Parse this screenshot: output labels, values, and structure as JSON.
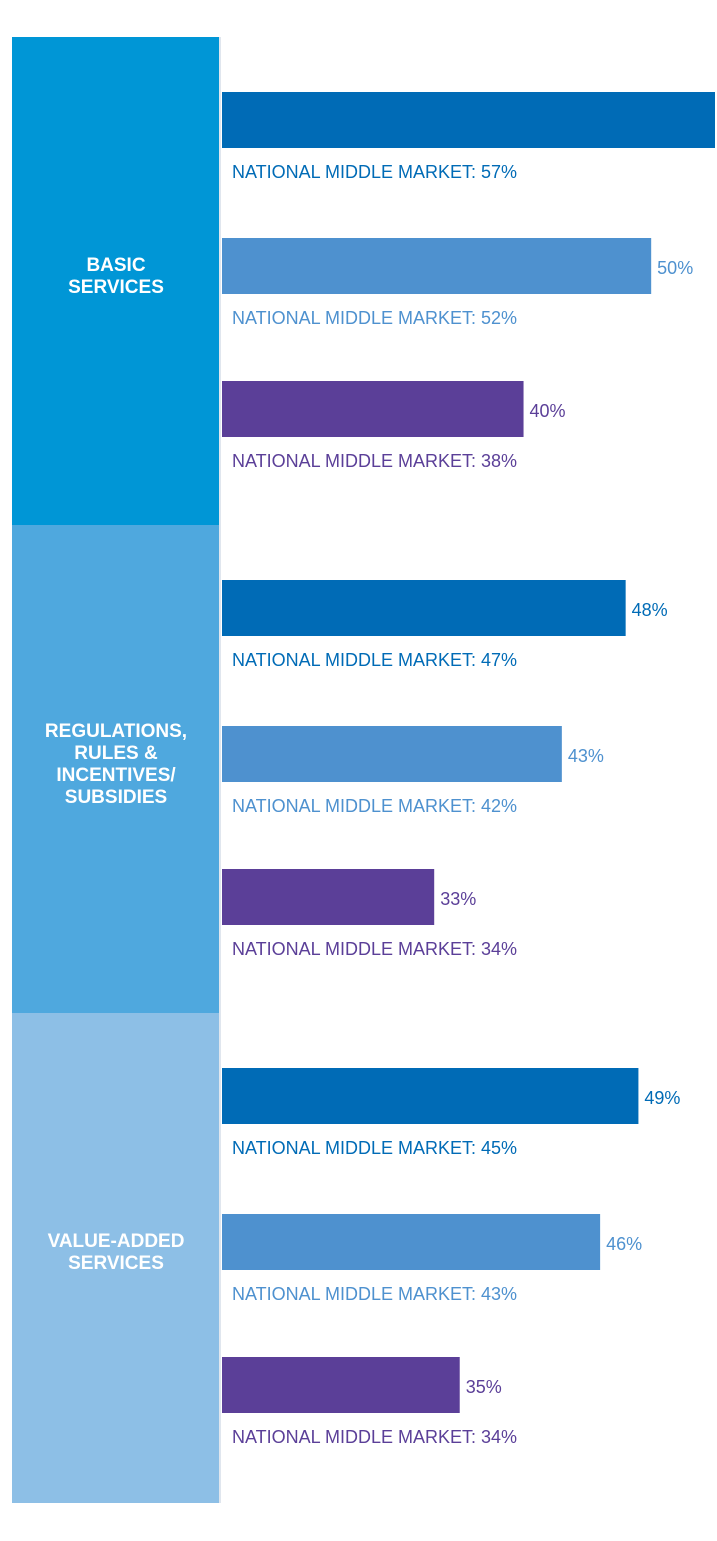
{
  "chart_data": {
    "type": "bar",
    "categories": [
      [
        "BASIC",
        "SERVICES"
      ],
      [
        "REGULATIONS,",
        "RULES &",
        "INCENTIVES/",
        "SUBSIDIES"
      ],
      [
        "VALUE-ADDED",
        "SERVICES"
      ]
    ],
    "category_colors": [
      "#0096d6",
      "#4fa8de",
      "#8dbfe6"
    ],
    "series": [
      {
        "color": "#006bb6",
        "values": [
          55,
          48,
          49
        ],
        "value_labels": [
          null,
          "48%",
          "49%"
        ],
        "national_labels": [
          "NATIONAL MIDDLE MARKET: 57%",
          "NATIONAL MIDDLE MARKET: 47%",
          "NATIONAL MIDDLE MARKET: 45%"
        ]
      },
      {
        "color": "#4e91cf",
        "values": [
          50,
          43,
          46
        ],
        "value_labels": [
          "50%",
          "43%",
          "46%"
        ],
        "national_labels": [
          "NATIONAL MIDDLE MARKET: 52%",
          "NATIONAL MIDDLE MARKET: 42%",
          "NATIONAL MIDDLE MARKET: 43%"
        ]
      },
      {
        "color": "#5b3f98",
        "values": [
          40,
          33,
          35
        ],
        "value_labels": [
          "40%",
          "33%",
          "35%"
        ],
        "national_labels": [
          "NATIONAL MIDDLE MARKET: 38%",
          "NATIONAL MIDDLE MARKET: 34%",
          "NATIONAL MIDDLE MARKET: 34%"
        ]
      }
    ],
    "xlim": [
      0,
      55
    ]
  }
}
